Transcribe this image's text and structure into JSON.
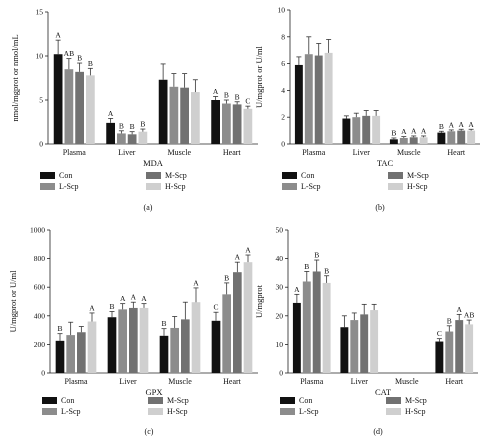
{
  "colors": {
    "Con": "#111111",
    "L-Scp": "#8c8c8c",
    "M-Scp": "#717171",
    "H-Scp": "#cfcfcf"
  },
  "chart_data": [
    {
      "type": "bar",
      "panel": "(a)",
      "xlabel": "MDA",
      "ylabel": "nmol/mgprot or nmol/mL",
      "ylim": [
        0,
        15
      ],
      "yticks": [
        0,
        5,
        10,
        15
      ],
      "categories": [
        "Plasma",
        "Liver",
        "Muscle",
        "Heart"
      ],
      "series": [
        {
          "name": "Con",
          "values": [
            10.2,
            2.4,
            7.3,
            5.0
          ],
          "errors": [
            1.6,
            0.5,
            1.8,
            0.4
          ],
          "labels": [
            "A",
            "A",
            "",
            "A"
          ]
        },
        {
          "name": "L-Scp",
          "values": [
            8.5,
            1.2,
            6.5,
            4.6
          ],
          "errors": [
            1.2,
            0.3,
            1.5,
            0.4
          ],
          "labels": [
            "AB",
            "B",
            "",
            "B"
          ]
        },
        {
          "name": "M-Scp",
          "values": [
            8.2,
            1.1,
            6.4,
            4.5
          ],
          "errors": [
            1.0,
            0.3,
            1.6,
            0.3
          ],
          "labels": [
            "B",
            "B",
            "",
            "B"
          ]
        },
        {
          "name": "H-Scp",
          "values": [
            7.8,
            1.4,
            5.9,
            4.0
          ],
          "errors": [
            0.8,
            0.3,
            1.4,
            0.3
          ],
          "labels": [
            "B",
            "B",
            "",
            "C"
          ]
        }
      ],
      "legend": [
        "Con",
        "M-Scp",
        "L-Scp",
        "H-Scp"
      ]
    },
    {
      "type": "bar",
      "panel": "(b)",
      "xlabel": "TAC",
      "ylabel": "U/mgprot or U/ml",
      "ylim": [
        0,
        10
      ],
      "yticks": [
        0,
        2,
        4,
        6,
        8,
        10
      ],
      "categories": [
        "Plasma",
        "Liver",
        "Muscle",
        "Heart"
      ],
      "series": [
        {
          "name": "Con",
          "values": [
            5.9,
            1.9,
            0.35,
            0.85
          ],
          "errors": [
            0.6,
            0.2,
            0.1,
            0.1
          ],
          "labels": [
            "",
            "",
            "B",
            "B"
          ]
        },
        {
          "name": "L-Scp",
          "values": [
            6.7,
            2.0,
            0.45,
            0.95
          ],
          "errors": [
            1.3,
            0.3,
            0.1,
            0.1
          ],
          "labels": [
            "",
            "",
            "A",
            "A"
          ]
        },
        {
          "name": "M-Scp",
          "values": [
            6.6,
            2.1,
            0.5,
            1.0
          ],
          "errors": [
            0.9,
            0.4,
            0.1,
            0.1
          ],
          "labels": [
            "",
            "",
            "A",
            "A"
          ]
        },
        {
          "name": "H-Scp",
          "values": [
            6.8,
            2.1,
            0.5,
            1.0
          ],
          "errors": [
            1.0,
            0.4,
            0.1,
            0.1
          ],
          "labels": [
            "",
            "",
            "A",
            "A"
          ]
        }
      ],
      "legend": [
        "Con",
        "M-Scp",
        "L-Scp",
        "H-Scp"
      ]
    },
    {
      "type": "bar",
      "panel": "(c)",
      "xlabel": "GPX",
      "ylabel": "U/mgprot or U/ml",
      "ylim": [
        0,
        1000
      ],
      "yticks": [
        0,
        200,
        400,
        600,
        800,
        1000
      ],
      "categories": [
        "Plasma",
        "Liver",
        "Muscle",
        "Heart"
      ],
      "series": [
        {
          "name": "Con",
          "values": [
            225,
            390,
            260,
            365
          ],
          "errors": [
            50,
            40,
            50,
            60
          ],
          "labels": [
            "B",
            "B",
            "B",
            "C"
          ]
        },
        {
          "name": "L-Scp",
          "values": [
            265,
            445,
            315,
            550
          ],
          "errors": [
            90,
            40,
            80,
            80
          ],
          "labels": [
            "",
            "A",
            "",
            "B"
          ]
        },
        {
          "name": "M-Scp",
          "values": [
            285,
            455,
            375,
            705
          ],
          "errors": [
            40,
            40,
            120,
            70
          ],
          "labels": [
            "",
            "A",
            "",
            "A"
          ]
        },
        {
          "name": "H-Scp",
          "values": [
            360,
            455,
            495,
            775
          ],
          "errors": [
            60,
            30,
            100,
            50
          ],
          "labels": [
            "A",
            "A",
            "A",
            "A"
          ]
        }
      ],
      "legend": [
        "Con",
        "M-Scp",
        "L-Scp",
        "H-Scp"
      ]
    },
    {
      "type": "bar",
      "panel": "(d)",
      "xlabel": "CAT",
      "ylabel": "U/mgprot",
      "ylim": [
        0,
        50
      ],
      "yticks": [
        0,
        10,
        20,
        30,
        40,
        50
      ],
      "categories": [
        "Plasma",
        "Liver",
        "Muscle",
        "Heart"
      ],
      "series": [
        {
          "name": "Con",
          "values": [
            24.5,
            16.0,
            null,
            11.0
          ],
          "errors": [
            3.0,
            4.0,
            0,
            1.0
          ],
          "labels": [
            "A",
            "",
            "",
            "C"
          ]
        },
        {
          "name": "L-Scp",
          "values": [
            32.0,
            18.5,
            null,
            14.5
          ],
          "errors": [
            3.5,
            2.5,
            0,
            2.0
          ],
          "labels": [
            "B",
            "",
            "",
            "B"
          ]
        },
        {
          "name": "M-Scp",
          "values": [
            35.5,
            20.5,
            null,
            18.5
          ],
          "errors": [
            4.0,
            3.5,
            0,
            2.0
          ],
          "labels": [
            "B",
            "",
            "",
            "A"
          ]
        },
        {
          "name": "H-Scp",
          "values": [
            31.5,
            22.0,
            null,
            17.0
          ],
          "errors": [
            2.5,
            2.0,
            0,
            1.5
          ],
          "labels": [
            "B",
            "",
            "",
            "AB"
          ]
        }
      ],
      "legend": [
        "Con",
        "M-Scp",
        "L-Scp",
        "H-Scp"
      ]
    }
  ]
}
